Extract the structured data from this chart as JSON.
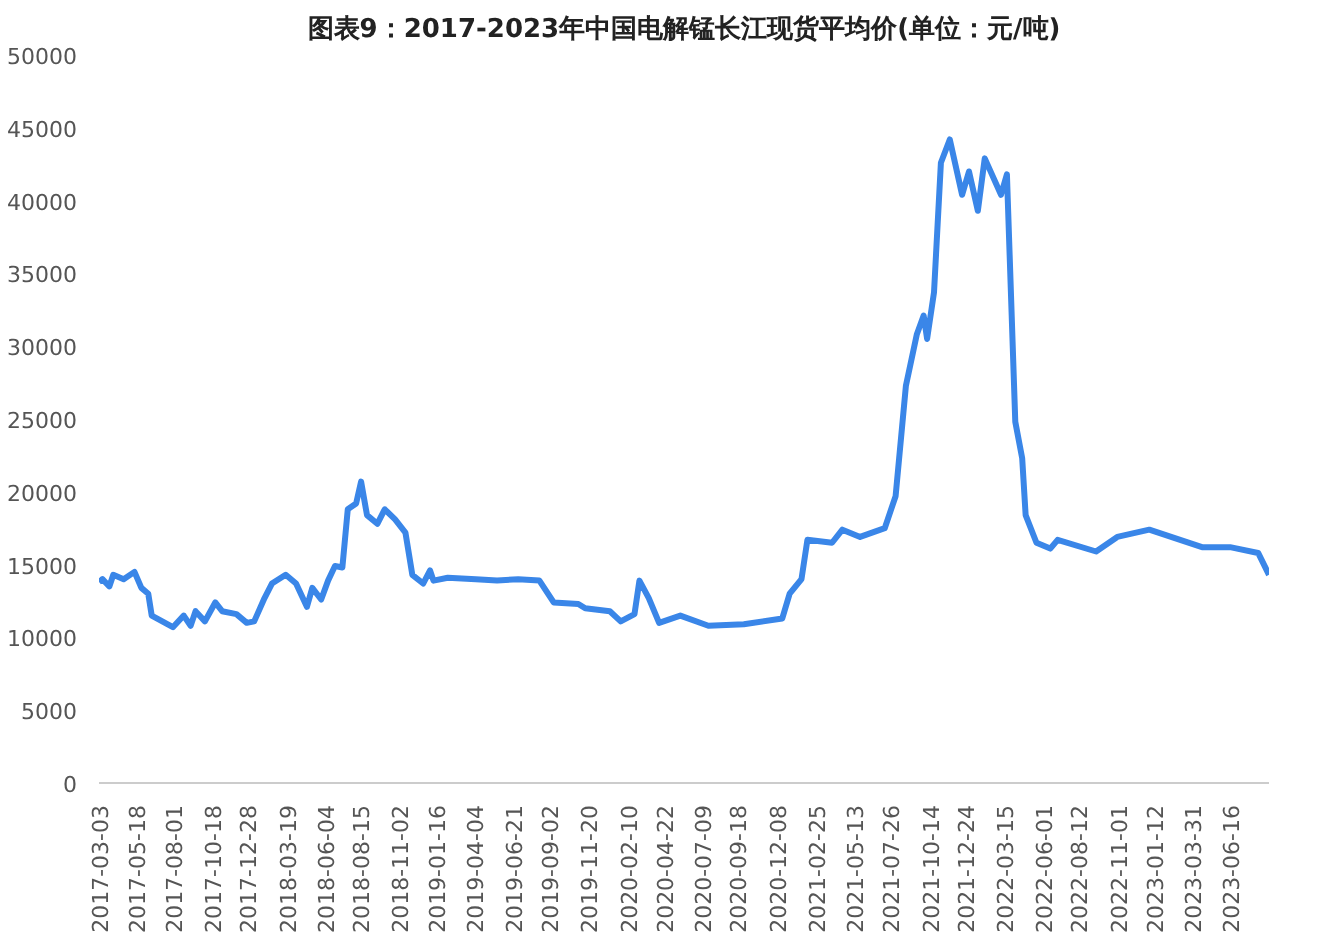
{
  "chart_data": {
    "type": "line",
    "title": "图表9：2017-2023年中国电解锰长江现货平均价(单位：元/吨)",
    "x": [
      "2017-03-03",
      "2017-03-10",
      "2017-03-24",
      "2017-04-01",
      "2017-04-22",
      "2017-05-14",
      "2017-05-28",
      "2017-06-11",
      "2017-06-18",
      "2017-07-31",
      "2017-08-22",
      "2017-09-05",
      "2017-09-15",
      "2017-10-04",
      "2017-10-25",
      "2017-11-08",
      "2017-12-07",
      "2017-12-28",
      "2018-01-12",
      "2018-02-02",
      "2018-02-17",
      "2018-03-17",
      "2018-04-07",
      "2018-04-29",
      "2018-05-10",
      "2018-05-28",
      "2018-06-11",
      "2018-06-25",
      "2018-07-10",
      "2018-07-21",
      "2018-08-07",
      "2018-08-17",
      "2018-08-29",
      "2018-09-19",
      "2018-10-04",
      "2018-10-25",
      "2018-11-15",
      "2018-11-29",
      "2018-12-21",
      "2019-01-04",
      "2019-01-11",
      "2019-02-09",
      "2019-04-07",
      "2019-05-20",
      "2019-07-02",
      "2019-08-14",
      "2019-09-12",
      "2019-11-01",
      "2019-11-15",
      "2020-01-04",
      "2020-01-26",
      "2020-02-23",
      "2020-03-04",
      "2020-03-23",
      "2020-04-13",
      "2020-05-26",
      "2020-07-22",
      "2020-10-02",
      "2020-12-19",
      "2021-01-03",
      "2021-01-27",
      "2021-02-08",
      "2021-03-30",
      "2021-04-20",
      "2021-05-26",
      "2021-07-15",
      "2021-08-06",
      "2021-08-27",
      "2021-09-18",
      "2021-10-02",
      "2021-10-09",
      "2021-10-23",
      "2021-11-06",
      "2021-11-24",
      "2021-12-19",
      "2022-01-02",
      "2022-01-20",
      "2022-02-03",
      "2022-03-08",
      "2022-03-20",
      "2022-04-06",
      "2022-04-20",
      "2022-04-27",
      "2022-05-19",
      "2022-06-16",
      "2022-07-01",
      "2022-09-17",
      "2022-10-30",
      "2023-01-03",
      "2023-04-20",
      "2023-06-16",
      "2023-08-12",
      "2023-09-03"
    ],
    "series": [
      {
        "color": "#3a86e8",
        "values": [
          13800,
          14000,
          13500,
          14300,
          14000,
          14500,
          13400,
          13000,
          11500,
          10700,
          11500,
          10800,
          11800,
          11100,
          12400,
          11800,
          11600,
          11000,
          11100,
          12700,
          13700,
          14300,
          13700,
          12100,
          13400,
          12600,
          13900,
          14900,
          14800,
          18800,
          19200,
          20700,
          18400,
          17800,
          18800,
          18100,
          17200,
          14300,
          13700,
          14600,
          13900,
          14100,
          14000,
          13900,
          14000,
          13900,
          12400,
          12300,
          12000,
          11800,
          11100,
          11600,
          13900,
          12700,
          11000,
          11500,
          10800,
          10900,
          11300,
          13000,
          14000,
          16700,
          16500,
          17400,
          16900,
          17500,
          19700,
          27300,
          30800,
          32100,
          30500,
          33700,
          42600,
          44200,
          40400,
          42000,
          39300,
          42900,
          40400,
          41800,
          24800,
          22300,
          18400,
          16500,
          16100,
          16700,
          15900,
          16900,
          17400,
          16200,
          16200,
          15800,
          14300
        ]
      }
    ],
    "xlim": [
      "2017-03-03",
      "2023-09-03"
    ],
    "xticks": [
      "2017-03-03",
      "2017-05-18",
      "2017-08-01",
      "2017-10-18",
      "2017-12-28",
      "2018-03-19",
      "2018-06-04",
      "2018-08-15",
      "2018-11-02",
      "2019-01-16",
      "2019-04-04",
      "2019-06-21",
      "2019-09-02",
      "2019-11-20",
      "2020-02-10",
      "2020-04-22",
      "2020-07-09",
      "2020-09-18",
      "2020-12-08",
      "2021-02-25",
      "2021-05-13",
      "2021-07-26",
      "2021-10-14",
      "2021-12-24",
      "2022-03-15",
      "2022-06-01",
      "2022-08-12",
      "2022-11-01",
      "2023-01-12",
      "2023-03-31",
      "2023-06-16"
    ],
    "ylim": [
      0,
      50000
    ],
    "yticks": [
      0,
      5000,
      10000,
      15000,
      20000,
      25000,
      30000,
      35000,
      40000,
      45000,
      50000
    ],
    "grid": false
  }
}
